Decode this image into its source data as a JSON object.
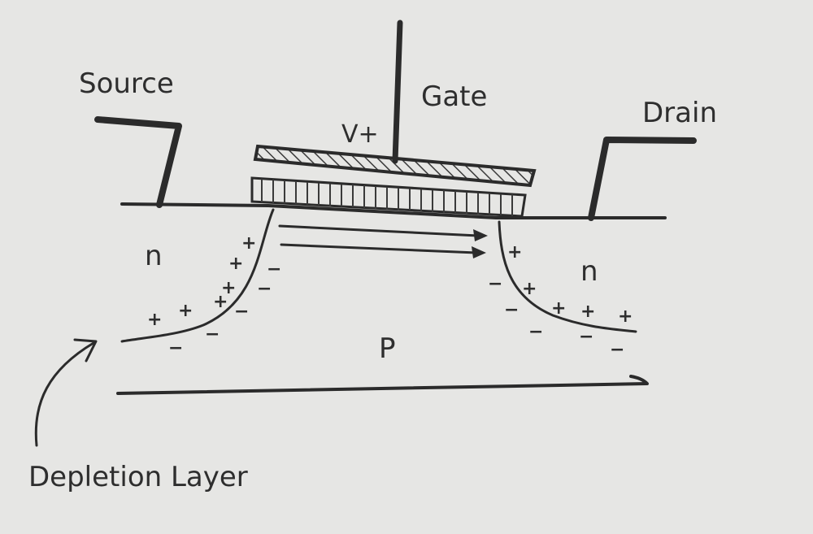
{
  "labels": {
    "source": "Source",
    "gate": "Gate",
    "drain": "Drain",
    "gate_voltage": "V+",
    "source_region": "n",
    "drain_region": "n",
    "substrate": "P",
    "depletion_layer": "Depletion Layer"
  },
  "charges": {
    "plus": "+",
    "minus": "−"
  },
  "colors": {
    "paper": "#e6e6e4",
    "ink": "#2b2b2b"
  }
}
